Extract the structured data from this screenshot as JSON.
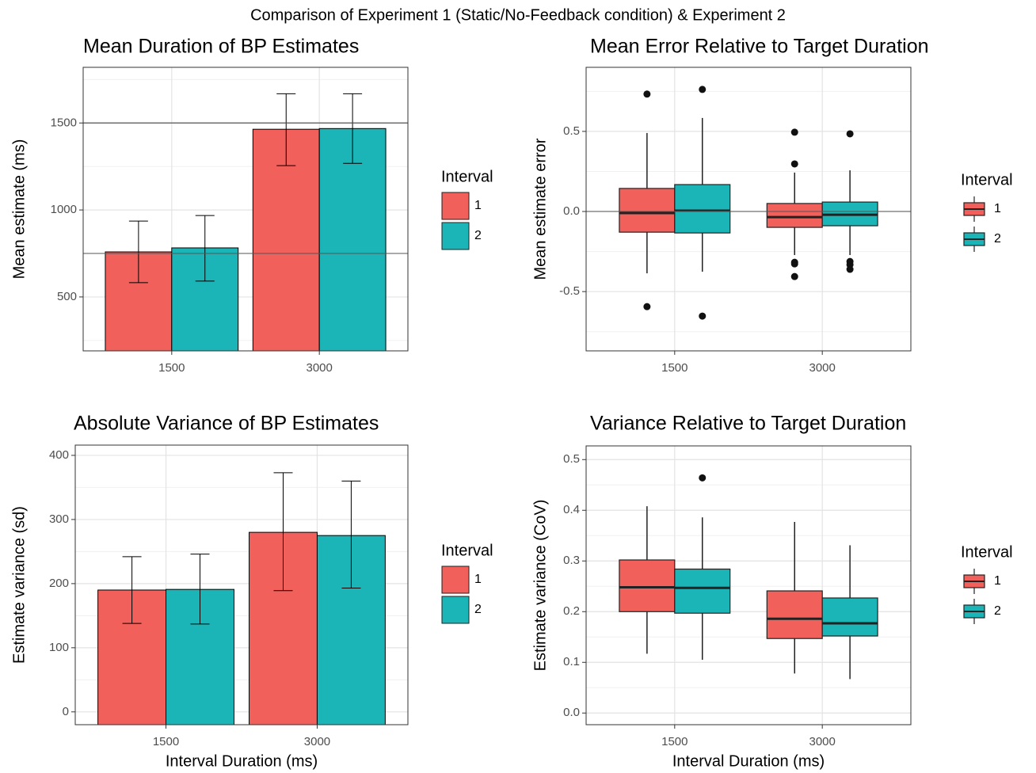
{
  "title": "Comparison of Experiment 1 (Static/No-Feedback condition) & Experiment 2",
  "chart_data": [
    {
      "type": "bar",
      "title": "Mean Duration of BP Estimates",
      "y_label": "Mean estimate (ms)",
      "categories": [
        "1500",
        "3000"
      ],
      "legend_title": "Interval",
      "ylim": [
        190,
        1820
      ],
      "yticks": [
        500,
        1000,
        1500
      ],
      "grid": true,
      "hlines": [
        750,
        1500
      ],
      "series": [
        {
          "name": "1",
          "color": "#f2605b",
          "values": [
            759,
            1464
          ],
          "err_low": [
            582,
            1255
          ],
          "err_high": [
            936,
            1668
          ]
        },
        {
          "name": "2",
          "color": "#1bb5b8",
          "values": [
            782,
            1468
          ],
          "err_low": [
            591,
            1268
          ],
          "err_high": [
            968,
            1668
          ]
        }
      ]
    },
    {
      "type": "box",
      "title": "Mean Error Relative to Target Duration",
      "y_label": "Mean estimate error",
      "categories": [
        "1500",
        "3000"
      ],
      "legend_title": "Interval",
      "ylim": [
        -0.87,
        0.9
      ],
      "yticks": [
        {
          "value": 0.5,
          "label": "0.5"
        },
        {
          "value": 0,
          "label": "0.0"
        },
        {
          "value": -0.5,
          "label": "-0.5"
        }
      ],
      "grid": true,
      "hlines": [
        0
      ],
      "series": [
        {
          "name": "1",
          "color": "#f2605b",
          "whisker_low": [
            -0.386,
            -0.272
          ],
          "q1": [
            -0.129,
            -0.099
          ],
          "median": [
            -0.01,
            -0.035
          ],
          "q3": [
            0.144,
            0.05
          ],
          "whisker_high": [
            0.49,
            0.243
          ],
          "outliers": [
            [
              0.733,
              -0.594
            ],
            [
              0.495,
              0.297,
              -0.317,
              -0.327,
              -0.406
            ]
          ]
        },
        {
          "name": "2",
          "color": "#1bb5b8",
          "whisker_low": [
            -0.376,
            -0.272
          ],
          "q1": [
            -0.134,
            -0.089
          ],
          "median": [
            0.005,
            -0.02
          ],
          "q3": [
            0.168,
            0.059
          ],
          "whisker_high": [
            0.584,
            0.257
          ],
          "outliers": [
            [
              0.762,
              -0.653
            ],
            [
              0.485,
              -0.312,
              -0.332,
              -0.361
            ]
          ]
        }
      ]
    },
    {
      "type": "bar",
      "title": "Absolute Variance of BP Estimates",
      "y_label": "Estimate variance (sd)",
      "x_label": "Interval Duration (ms)",
      "categories": [
        "1500",
        "3000"
      ],
      "legend_title": "Interval",
      "ylim": [
        -20,
        416
      ],
      "yticks": [
        0,
        100,
        200,
        300,
        400
      ],
      "grid": true,
      "series": [
        {
          "name": "1",
          "color": "#f2605b",
          "values": [
            190,
            280
          ],
          "err_low": [
            138,
            189
          ],
          "err_high": [
            242,
            373
          ]
        },
        {
          "name": "2",
          "color": "#1bb5b8",
          "values": [
            191,
            275
          ],
          "err_low": [
            137,
            193
          ],
          "err_high": [
            246,
            360
          ]
        }
      ]
    },
    {
      "type": "box",
      "title": "Variance Relative to Target Duration",
      "y_label": "Estimate variance (CoV)",
      "x_label": "Interval Duration (ms)",
      "categories": [
        "1500",
        "3000"
      ],
      "legend_title": "Interval",
      "ylim": [
        -0.023,
        0.527
      ],
      "yticks": [
        {
          "value": 0,
          "label": "0.0"
        },
        0.1,
        0.2,
        0.3,
        0.4,
        0.5
      ],
      "grid": true,
      "series": [
        {
          "name": "1",
          "color": "#f2605b",
          "whisker_low": [
            0.117,
            0.078
          ],
          "q1": [
            0.2,
            0.147
          ],
          "median": [
            0.248,
            0.186
          ],
          "q3": [
            0.302,
            0.241
          ],
          "whisker_high": [
            0.408,
            0.377
          ],
          "outliers": [
            [],
            []
          ]
        },
        {
          "name": "2",
          "color": "#1bb5b8",
          "whisker_low": [
            0.105,
            0.067
          ],
          "q1": [
            0.197,
            0.152
          ],
          "median": [
            0.247,
            0.177
          ],
          "q3": [
            0.284,
            0.227
          ],
          "whisker_high": [
            0.386,
            0.331
          ],
          "outliers": [
            [
              0.464
            ],
            []
          ]
        }
      ]
    }
  ]
}
